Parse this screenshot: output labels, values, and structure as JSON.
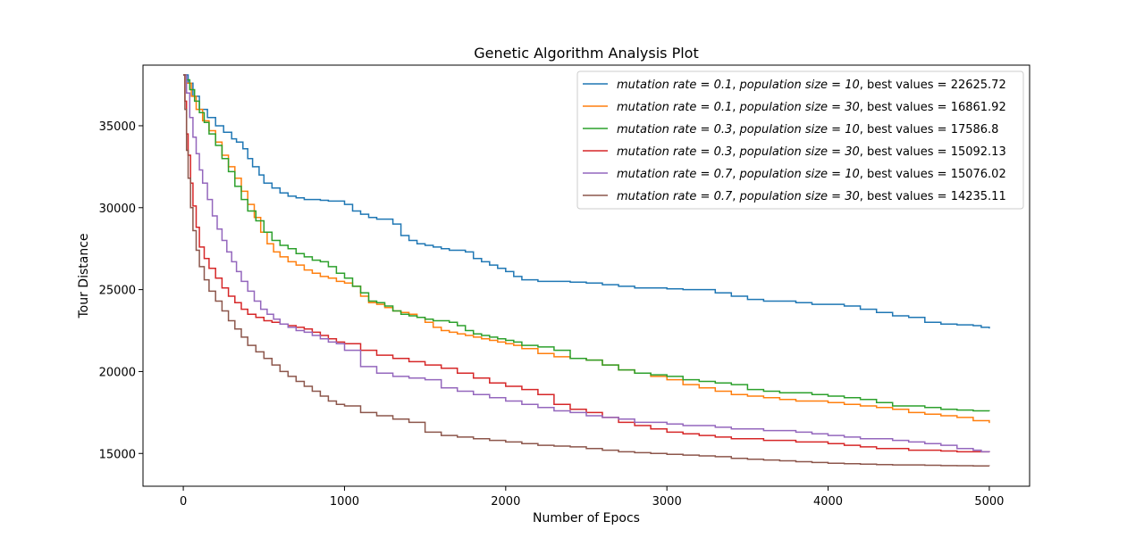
{
  "chart_data": {
    "type": "line",
    "title": "Genetic Algorithm Analysis Plot",
    "xlabel": "Number of Epocs",
    "ylabel": "Tour Distance",
    "xlim": [
      -250,
      5250
    ],
    "ylim": [
      13000,
      38700
    ],
    "xticks": [
      0,
      1000,
      2000,
      3000,
      4000,
      5000
    ],
    "yticks": [
      15000,
      20000,
      25000,
      30000,
      35000
    ],
    "xtick_labels": [
      "0",
      "1000",
      "2000",
      "3000",
      "4000",
      "5000"
    ],
    "ytick_labels": [
      "15000",
      "20000",
      "25000",
      "30000",
      "35000"
    ],
    "grid": false,
    "legend_position": "top-right",
    "series": [
      {
        "name": "mutationrate = 0.1, populationsize = 10, best values = 22625.72",
        "legend": {
          "v1": "mutation rate = 0.1",
          "v2": "population size = 10",
          "v3": "best values = 22625.72"
        },
        "color": "#1f77b4",
        "x": [
          0,
          30,
          60,
          100,
          150,
          200,
          250,
          300,
          330,
          370,
          400,
          430,
          470,
          500,
          550,
          600,
          650,
          700,
          750,
          800,
          850,
          900,
          950,
          1000,
          1050,
          1100,
          1150,
          1200,
          1250,
          1300,
          1350,
          1400,
          1450,
          1500,
          1550,
          1600,
          1650,
          1700,
          1750,
          1800,
          1850,
          1900,
          1950,
          2000,
          2050,
          2100,
          2200,
          2300,
          2400,
          2500,
          2600,
          2700,
          2800,
          2900,
          3000,
          3100,
          3200,
          3300,
          3400,
          3500,
          3600,
          3700,
          3800,
          3900,
          4000,
          4100,
          4200,
          4300,
          4400,
          4500,
          4600,
          4700,
          4800,
          4900,
          4950,
          5000
        ],
        "y": [
          38100,
          37600,
          36800,
          36000,
          35500,
          35000,
          34600,
          34200,
          34000,
          33600,
          33000,
          32500,
          32000,
          31500,
          31200,
          30900,
          30700,
          30600,
          30500,
          30500,
          30450,
          30400,
          30400,
          30200,
          29800,
          29600,
          29400,
          29300,
          29300,
          29000,
          28300,
          28000,
          27800,
          27700,
          27600,
          27500,
          27400,
          27400,
          27300,
          26900,
          26700,
          26500,
          26300,
          26100,
          25800,
          25600,
          25500,
          25500,
          25450,
          25400,
          25300,
          25200,
          25100,
          25100,
          25050,
          25000,
          25000,
          24800,
          24600,
          24400,
          24300,
          24300,
          24200,
          24100,
          24100,
          24000,
          23800,
          23600,
          23400,
          23300,
          23000,
          22900,
          22850,
          22800,
          22700,
          22625
        ]
      },
      {
        "name": "mutationrate = 0.1, populationsize = 30, best values = 16861.92",
        "legend": {
          "v1": "mutation rate = 0.1",
          "v2": "population size = 30",
          "v3": "best values = 16861.92"
        },
        "color": "#ff7f0e",
        "x": [
          0,
          20,
          50,
          80,
          120,
          160,
          200,
          240,
          280,
          320,
          360,
          400,
          440,
          480,
          520,
          560,
          600,
          650,
          700,
          750,
          800,
          850,
          900,
          950,
          1000,
          1050,
          1100,
          1150,
          1200,
          1250,
          1300,
          1350,
          1400,
          1450,
          1500,
          1550,
          1600,
          1650,
          1700,
          1750,
          1800,
          1850,
          1900,
          1950,
          2000,
          2050,
          2100,
          2200,
          2300,
          2400,
          2500,
          2600,
          2700,
          2800,
          2900,
          3000,
          3100,
          3200,
          3300,
          3400,
          3500,
          3600,
          3700,
          3800,
          3900,
          4000,
          4100,
          4200,
          4300,
          4400,
          4500,
          4600,
          4700,
          4800,
          4900,
          5000
        ],
        "y": [
          38100,
          37600,
          36800,
          36000,
          35300,
          34700,
          34000,
          33200,
          32500,
          31800,
          31000,
          30200,
          29400,
          28500,
          27800,
          27300,
          27000,
          26700,
          26500,
          26200,
          26000,
          25800,
          25700,
          25500,
          25400,
          25200,
          24600,
          24200,
          24100,
          23900,
          23700,
          23600,
          23500,
          23300,
          23000,
          22700,
          22500,
          22400,
          22300,
          22200,
          22100,
          22000,
          21900,
          21800,
          21700,
          21600,
          21400,
          21100,
          20900,
          20800,
          20700,
          20400,
          20100,
          19900,
          19700,
          19500,
          19200,
          19000,
          18800,
          18600,
          18500,
          18400,
          18300,
          18200,
          18200,
          18100,
          18000,
          17900,
          17800,
          17700,
          17500,
          17400,
          17300,
          17200,
          17000,
          16861
        ]
      },
      {
        "name": "mutationrate = 0.3, populationsize = 10, best values = 17586.8",
        "legend": {
          "v1": "mutation rate = 0.3",
          "v2": "population size = 10",
          "v3": "best values = 17586.8"
        },
        "color": "#2ca02c",
        "x": [
          0,
          20,
          40,
          70,
          100,
          130,
          160,
          200,
          240,
          280,
          320,
          360,
          400,
          450,
          500,
          550,
          600,
          650,
          700,
          750,
          800,
          850,
          900,
          950,
          1000,
          1050,
          1100,
          1150,
          1200,
          1250,
          1300,
          1350,
          1400,
          1450,
          1500,
          1550,
          1600,
          1650,
          1700,
          1750,
          1800,
          1850,
          1900,
          1950,
          2000,
          2050,
          2100,
          2200,
          2300,
          2400,
          2500,
          2600,
          2700,
          2800,
          2900,
          3000,
          3100,
          3200,
          3300,
          3400,
          3500,
          3600,
          3700,
          3800,
          3900,
          4000,
          4100,
          4200,
          4300,
          4400,
          4500,
          4600,
          4700,
          4800,
          4900,
          5000
        ],
        "y": [
          38100,
          37800,
          37200,
          36500,
          35800,
          35200,
          34500,
          33800,
          33000,
          32200,
          31300,
          30500,
          29800,
          29200,
          28500,
          28000,
          27700,
          27500,
          27200,
          27000,
          26800,
          26700,
          26400,
          26000,
          25700,
          25200,
          24800,
          24300,
          24200,
          24000,
          23700,
          23500,
          23400,
          23300,
          23200,
          23100,
          23100,
          23000,
          22800,
          22500,
          22300,
          22200,
          22100,
          22000,
          21900,
          21800,
          21600,
          21500,
          21300,
          20800,
          20700,
          20400,
          20100,
          19900,
          19800,
          19700,
          19500,
          19400,
          19300,
          19200,
          18900,
          18800,
          18700,
          18700,
          18600,
          18500,
          18400,
          18300,
          18100,
          17900,
          17900,
          17800,
          17700,
          17650,
          17600,
          17586
        ]
      },
      {
        "name": "mutationrate = 0.3, populationsize = 30, best values = 15092.13",
        "legend": {
          "v1": "mutation rate = 0.3",
          "v2": "population size = 30",
          "v3": "best values = 15092.13"
        },
        "color": "#d62728",
        "x": [
          0,
          10,
          20,
          30,
          45,
          60,
          80,
          100,
          130,
          160,
          200,
          240,
          280,
          320,
          360,
          400,
          450,
          500,
          550,
          600,
          650,
          700,
          750,
          800,
          850,
          900,
          950,
          1000,
          1100,
          1200,
          1300,
          1400,
          1500,
          1600,
          1700,
          1800,
          1900,
          2000,
          2100,
          2200,
          2300,
          2400,
          2500,
          2600,
          2700,
          2800,
          2900,
          3000,
          3100,
          3200,
          3300,
          3400,
          3500,
          3600,
          3700,
          3800,
          3900,
          4000,
          4100,
          4200,
          4300,
          4400,
          4500,
          4600,
          4700,
          4800,
          4900,
          5000
        ],
        "y": [
          38100,
          36500,
          34500,
          33200,
          31500,
          30100,
          28800,
          27600,
          26900,
          26300,
          25700,
          25100,
          24600,
          24200,
          23800,
          23500,
          23300,
          23100,
          23000,
          22900,
          22800,
          22700,
          22600,
          22400,
          22200,
          22000,
          21800,
          21700,
          21300,
          21000,
          20800,
          20600,
          20400,
          20200,
          19900,
          19600,
          19300,
          19100,
          18900,
          18600,
          18000,
          17700,
          17500,
          17200,
          16900,
          16700,
          16500,
          16300,
          16200,
          16100,
          16000,
          15900,
          15900,
          15800,
          15800,
          15700,
          15700,
          15600,
          15500,
          15400,
          15300,
          15300,
          15200,
          15200,
          15150,
          15100,
          15100,
          15092
        ]
      },
      {
        "name": "mutationrate = 0.7, populationsize = 10, best values = 15076.02",
        "legend": {
          "v1": "mutation rate = 0.7",
          "v2": "population size = 10",
          "v3": "best values = 15076.02"
        },
        "color": "#9467bd",
        "x": [
          0,
          20,
          40,
          60,
          80,
          100,
          120,
          150,
          180,
          210,
          240,
          270,
          300,
          330,
          360,
          400,
          440,
          480,
          520,
          560,
          600,
          650,
          700,
          750,
          800,
          850,
          900,
          950,
          1000,
          1100,
          1200,
          1300,
          1400,
          1500,
          1600,
          1700,
          1800,
          1900,
          2000,
          2100,
          2200,
          2300,
          2400,
          2500,
          2600,
          2700,
          2800,
          2900,
          3000,
          3100,
          3200,
          3300,
          3400,
          3500,
          3600,
          3700,
          3800,
          3900,
          4000,
          4100,
          4200,
          4300,
          4400,
          4500,
          4600,
          4700,
          4800,
          4900,
          4950,
          5000
        ],
        "y": [
          38100,
          37000,
          35500,
          34300,
          33300,
          32300,
          31500,
          30500,
          29500,
          28700,
          28000,
          27300,
          26700,
          26100,
          25500,
          24900,
          24300,
          23800,
          23500,
          23200,
          22900,
          22700,
          22500,
          22400,
          22200,
          22000,
          21800,
          21700,
          21300,
          20300,
          19900,
          19700,
          19600,
          19500,
          19000,
          18800,
          18600,
          18400,
          18200,
          18000,
          17800,
          17600,
          17500,
          17300,
          17200,
          17100,
          16900,
          16900,
          16800,
          16700,
          16700,
          16600,
          16500,
          16500,
          16400,
          16400,
          16300,
          16200,
          16100,
          16000,
          15900,
          15900,
          15800,
          15700,
          15600,
          15500,
          15300,
          15200,
          15100,
          15076
        ]
      },
      {
        "name": "mutationrate = 0.7, populationsize = 30, best values = 14235.11",
        "legend": {
          "v1": "mutation rate = 0.7",
          "v2": "population size = 30",
          "v3": "best values = 14235.11"
        },
        "color": "#8c564b",
        "x": [
          0,
          10,
          20,
          30,
          45,
          60,
          80,
          100,
          130,
          160,
          200,
          240,
          280,
          320,
          360,
          400,
          450,
          500,
          550,
          600,
          650,
          700,
          750,
          800,
          850,
          900,
          950,
          1000,
          1100,
          1200,
          1300,
          1400,
          1500,
          1600,
          1700,
          1800,
          1900,
          2000,
          2100,
          2200,
          2300,
          2400,
          2500,
          2600,
          2700,
          2800,
          2900,
          3000,
          3100,
          3200,
          3300,
          3400,
          3500,
          3600,
          3700,
          3800,
          3900,
          4000,
          4100,
          4200,
          4300,
          4400,
          4500,
          4600,
          4700,
          4800,
          4900,
          5000
        ],
        "y": [
          38100,
          36000,
          33500,
          31800,
          30000,
          28600,
          27400,
          26400,
          25600,
          24900,
          24300,
          23700,
          23100,
          22600,
          22100,
          21600,
          21200,
          20800,
          20400,
          20000,
          19700,
          19400,
          19100,
          18800,
          18500,
          18200,
          18000,
          17900,
          17500,
          17300,
          17100,
          16900,
          16300,
          16100,
          16000,
          15900,
          15800,
          15700,
          15600,
          15500,
          15450,
          15400,
          15300,
          15200,
          15100,
          15050,
          15000,
          14950,
          14900,
          14850,
          14800,
          14700,
          14650,
          14600,
          14550,
          14500,
          14450,
          14400,
          14380,
          14350,
          14320,
          14300,
          14300,
          14280,
          14260,
          14250,
          14240,
          14235
        ]
      }
    ]
  }
}
